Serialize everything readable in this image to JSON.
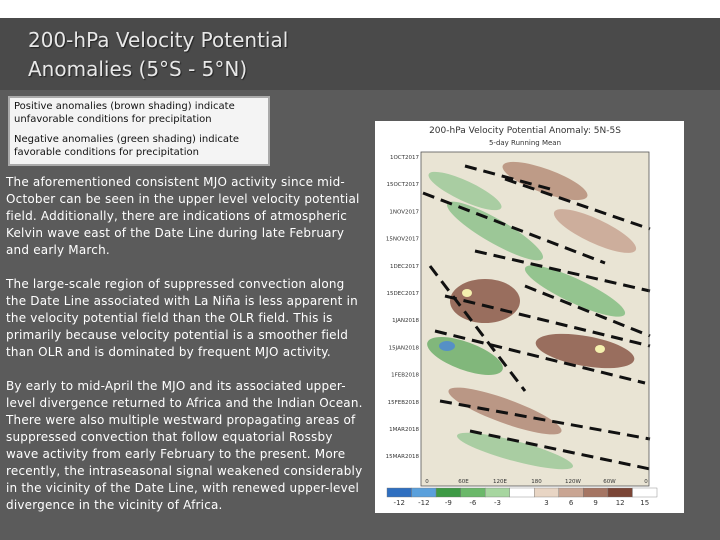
{
  "slide": {
    "title": [
      "200-hPa Velocity Potential",
      "Anomalies (5°S - 5°N)"
    ],
    "note_box": [
      "Positive anomalies (brown shading) indicate unfavorable conditions for precipitation",
      "Negative anomalies (green shading) indicate favorable conditions for precipitation"
    ],
    "paragraphs": [
      "The aforementioned consistent MJO activity since mid-October can be seen in the upper level velocity potential field. Additionally, there are indications of atmospheric Kelvin wave east of the Date Line during late February and early March.",
      "The large-scale region of suppressed convection along the Date Line associated with La Niña is less apparent in the velocity potential field than the OLR field. This is primarily because velocity potential is a smoother field than OLR and is dominated by frequent MJO activity.",
      "By early to mid-April the MJO and its associated upper-level divergence returned to Africa and the Indian Ocean. There were also multiple westward propagating areas of suppressed convection that follow equatorial Rossby wave activity from early February to the present. More recently, the intraseasonal signal weakened considerably in the vicinity of the Date Line, with renewed upper-level divergence  in the vicinity of Africa."
    ],
    "figure": {
      "title": "200-hPa Velocity Potential Anomaly: 5N-5S",
      "subtitle": "5-day Running Mean",
      "dates": [
        "1OCT2017",
        "15OCT2017",
        "1NOV2017",
        "15NOV2017",
        "1DEC2017",
        "15DEC2017",
        "1JAN2018",
        "15JAN2018",
        "1FEB2018",
        "15FEB2018",
        "1MAR2018",
        "15MAR2018"
      ],
      "longitudes": [
        "0",
        "60E",
        "120E",
        "180",
        "120W",
        "60W",
        "0"
      ],
      "colorbar_labels": [
        "-12",
        "-12",
        "-9",
        "-6",
        "-3",
        "3",
        "6",
        "9",
        "12",
        "15"
      ]
    }
  }
}
